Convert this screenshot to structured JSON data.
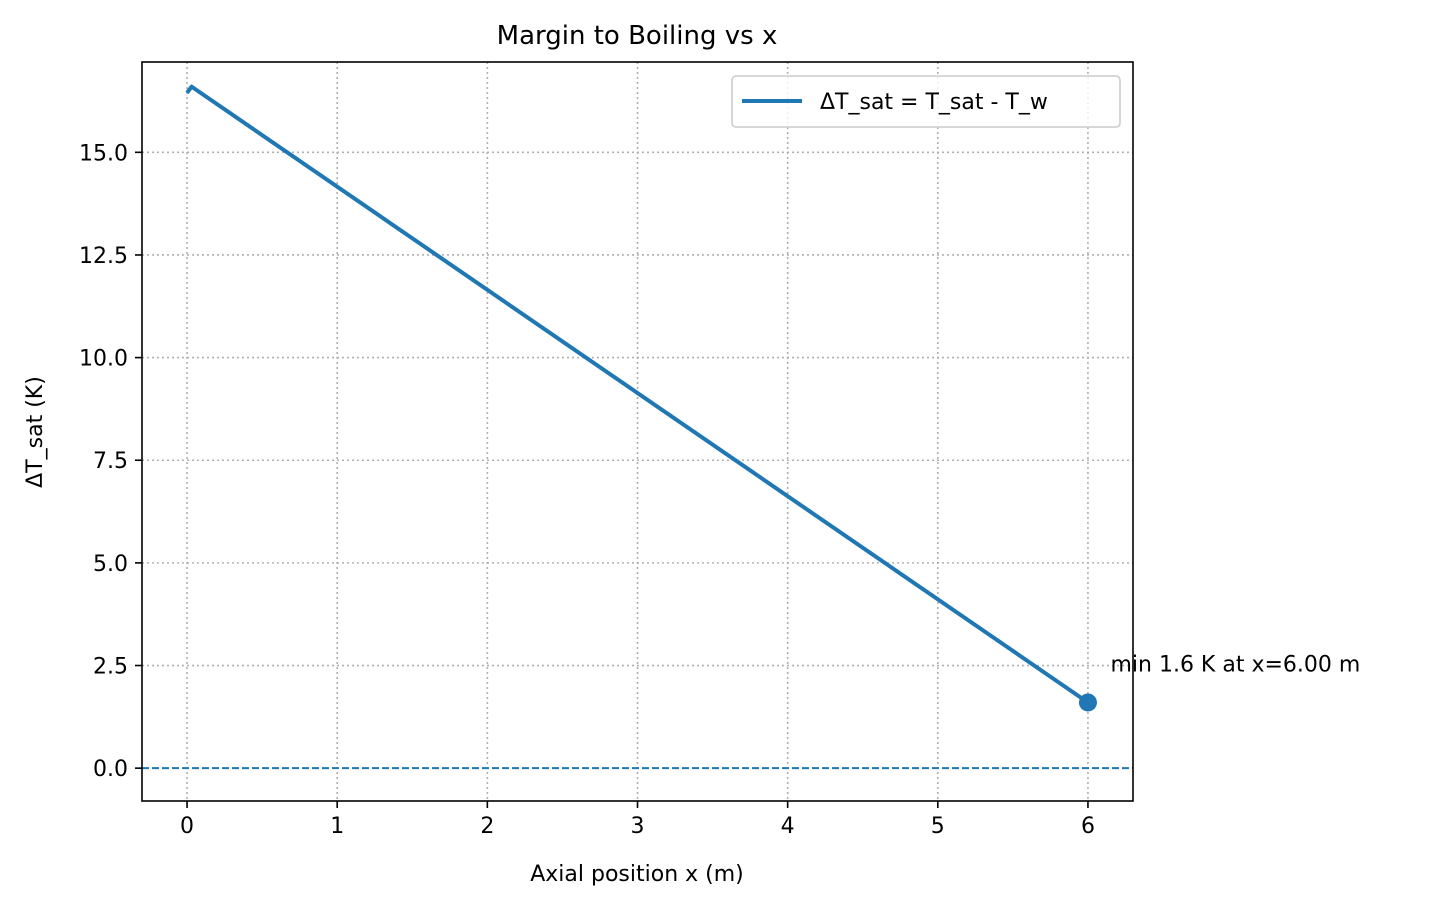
{
  "chart_data": {
    "type": "line",
    "title": "Margin to Boiling vs x",
    "xlabel": "Axial position x (m)",
    "ylabel": "ΔT_sat (K)",
    "xlim": [
      -0.3,
      6.3
    ],
    "ylim": [
      -0.8,
      17.2
    ],
    "xticks": [
      0,
      1,
      2,
      3,
      4,
      5,
      6
    ],
    "yticks": [
      0.0,
      2.5,
      5.0,
      7.5,
      10.0,
      12.5,
      15.0
    ],
    "xtick_labels": [
      "0",
      "1",
      "2",
      "3",
      "4",
      "5",
      "6"
    ],
    "ytick_labels": [
      "0.0",
      "2.5",
      "5.0",
      "7.5",
      "10.0",
      "12.5",
      "15.0"
    ],
    "grid": true,
    "legend_position": "top-right",
    "series": [
      {
        "name": "ΔT_sat = T_sat - T_w",
        "color": "#1f77b4",
        "x": [
          0.0,
          0.03,
          6.0
        ],
        "y": [
          16.45,
          16.6,
          1.6
        ]
      }
    ],
    "reference_line": {
      "y": 0.0,
      "style": "dashed",
      "color": "#1f77b4"
    },
    "min_marker": {
      "x": 6.0,
      "y": 1.6,
      "color": "#1f77b4"
    },
    "annotation": {
      "text": "min 1.6 K at x=6.00 m",
      "x": 6.15,
      "y": 2.55
    }
  }
}
